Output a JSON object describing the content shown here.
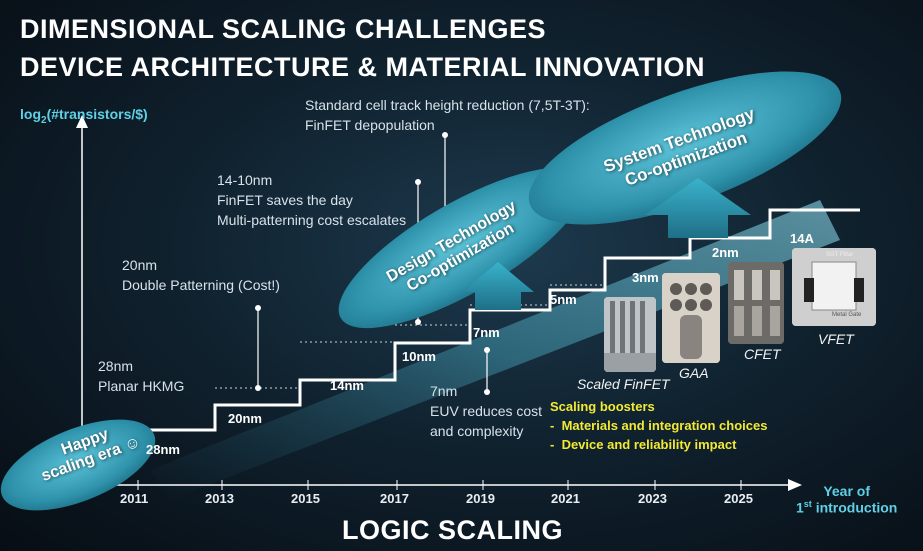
{
  "title_line1": "DIMENSIONAL SCALING CHALLENGES",
  "title_line2": "DEVICE ARCHITECTURE & MATERIAL INNOVATION",
  "y_axis": {
    "prefix": "log",
    "sub": "2",
    "suffix": "(#transistors/$)"
  },
  "x_axis": {
    "line1": "Year of",
    "line2_num": "1",
    "line2_sup": "st",
    "line2_rest": " introduction"
  },
  "years": [
    "2011",
    "2013",
    "2015",
    "2017",
    "2019",
    "2021",
    "2023",
    "2025"
  ],
  "nodes": [
    "28nm",
    "20nm",
    "14nm",
    "10nm",
    "7nm",
    "5nm",
    "3nm",
    "2nm",
    "14A"
  ],
  "annotations": {
    "a28": [
      "28nm",
      "Planar HKMG"
    ],
    "a20": [
      "20nm",
      "Double Patterning (Cost!)"
    ],
    "a14": [
      "14-10nm",
      "FinFET saves the day",
      "Multi-patterning cost escalates"
    ],
    "a_track": [
      "Standard cell track height reduction (7,5T-3T):",
      "FinFET depopulation"
    ],
    "a7": [
      "7nm",
      "EUV reduces cost",
      "and complexity"
    ]
  },
  "ellipses": {
    "happy": [
      "Happy",
      "scaling era ☺"
    ],
    "dtco": [
      "Design Technology",
      "Co-optimization"
    ],
    "stco": [
      "System Technology",
      "Co-optimization"
    ]
  },
  "device_types": [
    "Scaled FinFET",
    "GAA",
    "CFET",
    "VFET"
  ],
  "image_labels": {
    "sgt_pillar": "SGT Pillar",
    "metal_gate": "Metal Gate"
  },
  "boosters": {
    "heading": "Scaling boosters",
    "items": [
      "Materials and integration choices",
      "Device and reliability impact"
    ]
  },
  "bottom_title": "LOGIC SCALING",
  "colors": {
    "accent": "#5fd0e6",
    "ellipse": "#3aa6be",
    "booster": "#f2ea33",
    "text": "#ffffff"
  }
}
